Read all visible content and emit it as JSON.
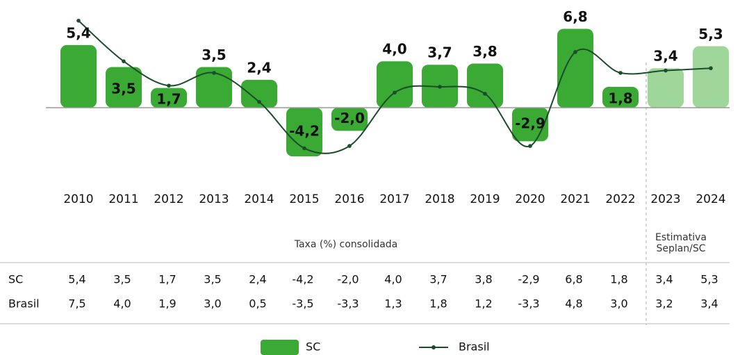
{
  "chart_data": {
    "type": "bar",
    "categories": [
      "2010",
      "2011",
      "2012",
      "2013",
      "2014",
      "2015",
      "2016",
      "2017",
      "2018",
      "2019",
      "2020",
      "2021",
      "2022",
      "2023",
      "2024"
    ],
    "series": [
      {
        "name": "SC",
        "type": "bar",
        "color": "#3aaa35",
        "colors": [
          "#3aaa35",
          "#3aaa35",
          "#3aaa35",
          "#3aaa35",
          "#3aaa35",
          "#3aaa35",
          "#3aaa35",
          "#3aaa35",
          "#3aaa35",
          "#3aaa35",
          "#3aaa35",
          "#3aaa35",
          "#3aaa35",
          "#9fd69a",
          "#9fd69a"
        ],
        "values": [
          5.4,
          3.5,
          1.7,
          3.5,
          2.4,
          -4.2,
          -2.0,
          4.0,
          3.7,
          3.8,
          -2.9,
          6.8,
          1.8,
          3.4,
          5.3
        ],
        "value_labels": [
          "5,4",
          "3,5",
          "1,7",
          "3,5",
          "2,4",
          "-4,2",
          "-2,0",
          "4,0",
          "3,7",
          "3,8",
          "-2,9",
          "6,8",
          "1,8",
          "3,4",
          "5,3"
        ]
      },
      {
        "name": "Brasil",
        "type": "line",
        "color": "#1b4d2b",
        "values": [
          7.5,
          4.0,
          1.9,
          3.0,
          0.5,
          -3.5,
          -3.3,
          1.3,
          1.8,
          1.2,
          -3.3,
          4.8,
          3.0,
          3.2,
          3.4
        ],
        "value_labels": [
          "7,5",
          "4,0",
          "1,9",
          "3,0",
          "0,5",
          "-3,5",
          "-3,3",
          "1,3",
          "1,8",
          "1,2",
          "-3,3",
          "4,8",
          "3,0",
          "3,2",
          "3,4"
        ]
      }
    ],
    "ylim": [
      -5,
      8
    ],
    "notes": {
      "consolidated": "Taxa (%) consolidada",
      "estimate": [
        "Estimativa",
        "Seplan/SC"
      ]
    }
  }
}
